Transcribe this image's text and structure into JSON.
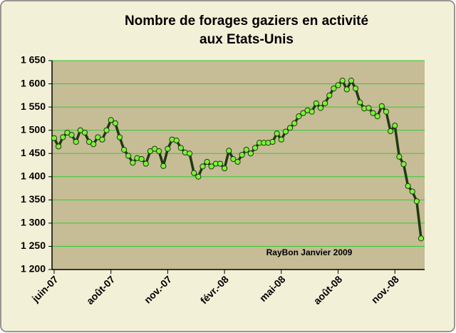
{
  "chart_data": {
    "type": "line",
    "title": [
      "Nombre de forages gaziers en activité",
      "aux Etats-Unis"
    ],
    "annotation": "RayBon Janvier 2009",
    "categories": [
      "juin-07",
      null,
      null,
      null,
      null,
      null,
      null,
      null,
      null,
      null,
      null,
      null,
      null,
      "août-07",
      null,
      null,
      null,
      null,
      null,
      null,
      null,
      null,
      null,
      null,
      null,
      null,
      "nov.-07",
      null,
      null,
      null,
      null,
      null,
      null,
      null,
      null,
      null,
      null,
      null,
      null,
      "févr.-08",
      null,
      null,
      null,
      null,
      null,
      null,
      null,
      null,
      null,
      null,
      null,
      null,
      "mai-08",
      null,
      null,
      null,
      null,
      null,
      null,
      null,
      null,
      null,
      null,
      null,
      null,
      "août-08",
      null,
      null,
      null,
      null,
      null,
      null,
      null,
      null,
      null,
      null,
      null,
      null,
      "nov.-08",
      null,
      null,
      null,
      null,
      null,
      null
    ],
    "series": [
      {
        "name": "Forages gaziers",
        "color": "#1e3a12",
        "marker_color": "#7cf23a",
        "values": [
          1483,
          1465,
          1485,
          1495,
          1490,
          1475,
          1500,
          1495,
          1475,
          1470,
          1485,
          1480,
          1500,
          1522,
          1515,
          1485,
          1458,
          1445,
          1430,
          1440,
          1438,
          1428,
          1455,
          1460,
          1455,
          1423,
          1460,
          1480,
          1478,
          1462,
          1452,
          1450,
          1408,
          1400,
          1422,
          1432,
          1422,
          1428,
          1428,
          1418,
          1456,
          1438,
          1432,
          1447,
          1458,
          1450,
          1462,
          1473,
          1473,
          1473,
          1475,
          1493,
          1480,
          1497,
          1505,
          1515,
          1530,
          1537,
          1543,
          1540,
          1558,
          1548,
          1558,
          1575,
          1590,
          1597,
          1607,
          1588,
          1607,
          1590,
          1560,
          1547,
          1548,
          1537,
          1530,
          1552,
          1540,
          1498,
          1510,
          1443,
          1427,
          1380,
          1368,
          1347,
          1267
        ]
      }
    ],
    "ylim": [
      1200,
      1650
    ],
    "yticks": [
      {
        "value": 1200,
        "label": "1 200"
      },
      {
        "value": 1250,
        "label": "1 250"
      },
      {
        "value": 1300,
        "label": "1 300"
      },
      {
        "value": 1350,
        "label": "1 350"
      },
      {
        "value": 1400,
        "label": "1 400"
      },
      {
        "value": 1450,
        "label": "1 450"
      },
      {
        "value": 1500,
        "label": "1 500"
      },
      {
        "value": 1550,
        "label": "1 550"
      },
      {
        "value": 1600,
        "label": "1 600"
      },
      {
        "value": 1650,
        "label": "1 650"
      }
    ],
    "grid": true,
    "grid_color": "#33cc33",
    "plot_background": "#c6bc95",
    "background": "#f3f0d8"
  }
}
